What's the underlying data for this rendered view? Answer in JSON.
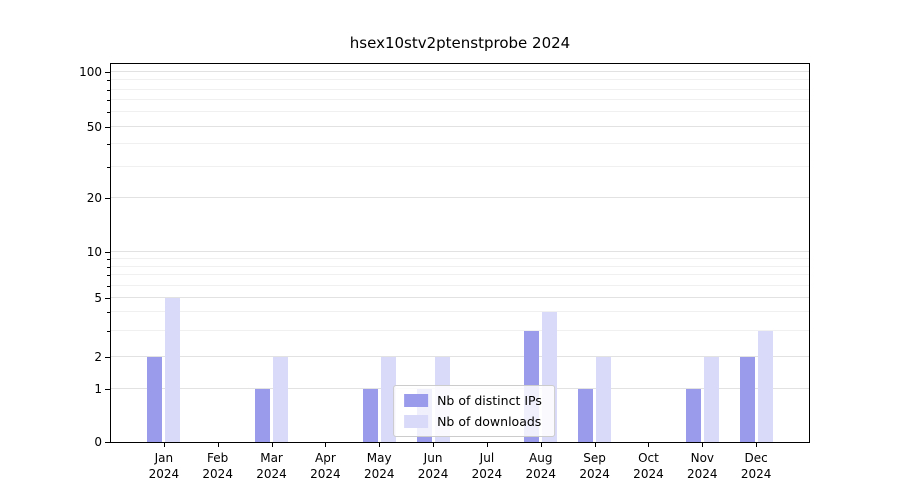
{
  "title": "hsex10stv2ptenstprobe 2024",
  "chart_data": {
    "type": "bar",
    "title": "hsex10stv2ptenstprobe 2024",
    "categories": [
      "Jan",
      "Feb",
      "Mar",
      "Apr",
      "May",
      "Jun",
      "Jul",
      "Aug",
      "Sep",
      "Oct",
      "Nov",
      "Dec"
    ],
    "category_year": "2024",
    "series": [
      {
        "name": "Nb of distinct IPs",
        "color": "#9b9bec",
        "values": [
          2,
          0,
          1,
          0,
          1,
          1,
          0,
          3,
          1,
          0,
          1,
          2
        ]
      },
      {
        "name": "Nb of downloads",
        "color": "#d9d9f9",
        "values": [
          5,
          0,
          2,
          0,
          2,
          2,
          0,
          4,
          2,
          0,
          2,
          3
        ]
      }
    ],
    "yscale": "symlog",
    "yticks": [
      0,
      1,
      2,
      5,
      10,
      20,
      50,
      100
    ],
    "minor_yticks": [
      3,
      4,
      6,
      7,
      8,
      9,
      30,
      40,
      60,
      70,
      80,
      90
    ],
    "ylim": [
      0,
      110
    ],
    "grid": true,
    "legend_position": "lower center"
  }
}
